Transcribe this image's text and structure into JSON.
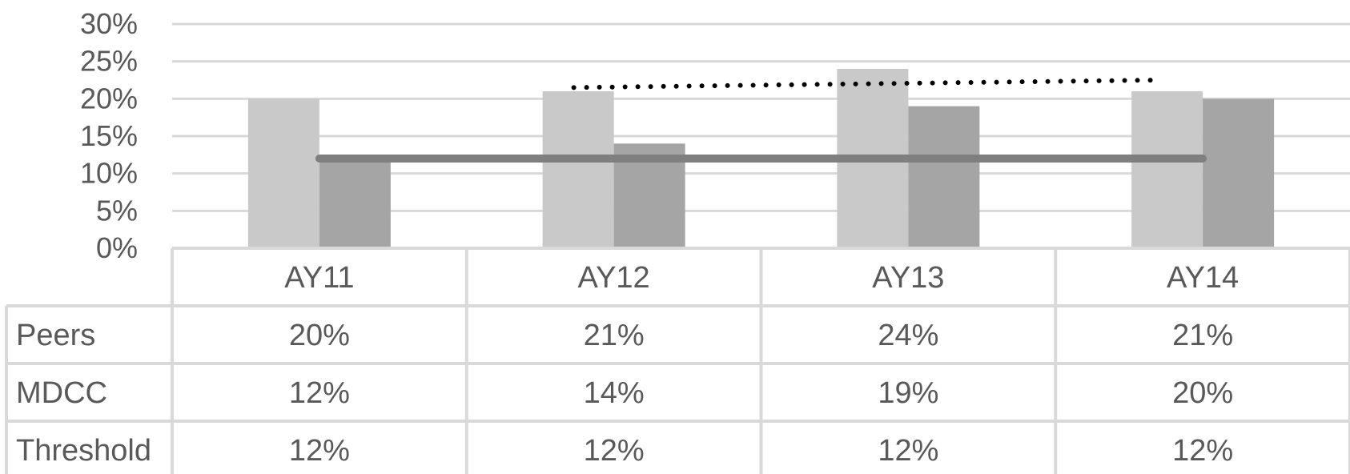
{
  "chart_data": {
    "type": "bar",
    "categories": [
      "AY11",
      "AY12",
      "AY13",
      "AY14"
    ],
    "ylim": [
      0,
      30
    ],
    "yticks": [
      "0%",
      "5%",
      "10%",
      "15%",
      "20%",
      "25%",
      "30%"
    ],
    "grid": true,
    "series": [
      {
        "name": "Peers",
        "kind": "bar",
        "color": "#c9c9c9",
        "values": [
          20,
          21,
          24,
          21
        ],
        "labels": [
          "20%",
          "21%",
          "24%",
          "21%"
        ]
      },
      {
        "name": "MDCC",
        "kind": "bar",
        "color": "#a5a5a5",
        "values": [
          12,
          14,
          19,
          20
        ],
        "labels": [
          "12%",
          "14%",
          "19%",
          "20%"
        ]
      },
      {
        "name": "Threshold",
        "kind": "line",
        "color": "#7f7f7f",
        "values": [
          12,
          12,
          12,
          12
        ],
        "labels": [
          "12%",
          "12%",
          "12%",
          "12%"
        ]
      }
    ],
    "trendline": {
      "series": "Peers",
      "style": "dotted",
      "color": "#000000"
    }
  }
}
